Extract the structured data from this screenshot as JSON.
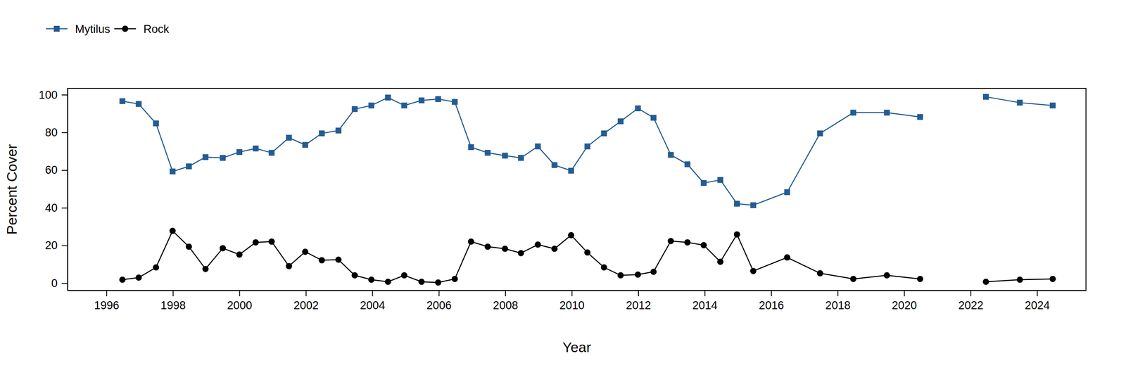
{
  "chart_data": {
    "type": "line",
    "x_label": "Year",
    "y_label": "Percent Cover",
    "x": [
      1996.48,
      1996.97,
      1997.49,
      1997.99,
      1998.48,
      1998.98,
      1999.5,
      2000.0,
      2000.49,
      2000.97,
      2001.49,
      2001.98,
      2002.48,
      2002.98,
      2003.47,
      2003.97,
      2004.47,
      2004.96,
      2005.48,
      2005.98,
      2006.48,
      2006.97,
      2007.47,
      2007.99,
      2008.47,
      2008.98,
      2009.48,
      2009.98,
      2010.47,
      2010.97,
      2011.47,
      2011.99,
      2012.46,
      2012.98,
      2013.48,
      2013.97,
      2014.47,
      2014.97,
      2015.46,
      2016.48,
      2017.47,
      2018.47,
      2019.48,
      2020.48,
      2021.47,
      2022.46,
      2023.48,
      2024.47
    ],
    "series": [
      {
        "name": "Mytilus",
        "color": "#235b93",
        "marker": "square",
        "line_style": "solid",
        "values": [
          96.6,
          95.1,
          84.8,
          59.3,
          62.0,
          66.9,
          66.5,
          69.6,
          71.5,
          69.2,
          77.2,
          73.4,
          79.5,
          81.0,
          92.4,
          94.3,
          98.5,
          94.3,
          97.0,
          97.7,
          96.2,
          72.2,
          69.2,
          67.7,
          66.5,
          72.6,
          62.7,
          59.7,
          72.6,
          79.5,
          85.9,
          92.8,
          87.8,
          68.1,
          63.1,
          53.2,
          54.8,
          42.2,
          41.4,
          48.3,
          79.5,
          90.5,
          90.5,
          88.2,
          null,
          98.9,
          95.8,
          94.3
        ]
      },
      {
        "name": "Rock",
        "color": "#000000",
        "marker": "circle",
        "line_style": "solid",
        "values": [
          1.9,
          3.0,
          8.4,
          27.8,
          19.4,
          7.6,
          18.6,
          15.2,
          21.7,
          22.1,
          9.1,
          16.7,
          12.2,
          12.5,
          4.2,
          1.9,
          0.8,
          4.2,
          0.8,
          0.4,
          2.3,
          22.1,
          19.4,
          18.3,
          16.0,
          20.5,
          18.3,
          25.5,
          16.3,
          8.4,
          4.2,
          4.6,
          6.1,
          22.4,
          21.7,
          20.2,
          11.4,
          25.9,
          6.5,
          13.7,
          5.3,
          2.3,
          4.2,
          2.3,
          null,
          0.8,
          1.9,
          2.3
        ]
      }
    ],
    "xlim": [
      1994.83,
      2025.47
    ],
    "xticks": [
      1996,
      1998,
      2000,
      2002,
      2004,
      2006,
      2008,
      2010,
      2012,
      2014,
      2016,
      2018,
      2020,
      2022,
      2024
    ],
    "ylim": [
      -3.8,
      103.4
    ],
    "yticks": [
      0,
      20,
      40,
      60,
      80,
      100
    ],
    "legend": "top-left"
  }
}
